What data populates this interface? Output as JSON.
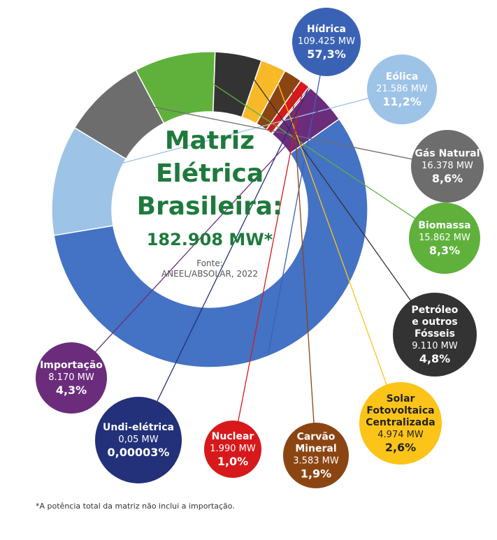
{
  "chart_data": {
    "type": "pie",
    "center": {
      "title_lines": [
        "Matriz",
        "Elétrica",
        "Brasileira:"
      ],
      "total": "182.908 MW*",
      "source_lines": [
        "Fonte:",
        "ANEEL/ABSOLAR, 2022"
      ]
    },
    "categories": [
      "Hídrica",
      "Eólica",
      "Gás Natural",
      "Biomassa",
      "Petróleo e outros Fósseis",
      "Solar Fotovoltaica Centralizada",
      "Carvão Mineral",
      "Nuclear",
      "Undi-elétrica",
      "Importação"
    ],
    "values_mw": [
      109425,
      21586,
      16378,
      15862,
      9110,
      4974,
      3583,
      1990,
      0.05,
      8170
    ],
    "values_pct": [
      57.3,
      11.2,
      8.6,
      8.3,
      4.8,
      2.6,
      1.9,
      1.0,
      3e-05,
      4.3
    ],
    "slices": [
      {
        "name_lines": [
          "Hídrica"
        ],
        "mw": "109.425 MW",
        "pct": "57,3%",
        "color": "#4472c4",
        "bubble_color": "#3a62b4",
        "text_color": "#ffffff"
      },
      {
        "name_lines": [
          "Eólica"
        ],
        "mw": "21.586 MW",
        "pct": "11,2%",
        "color": "#9dc3e6",
        "bubble_color": "#9dc3e6",
        "text_color": "#ffffff"
      },
      {
        "name_lines": [
          "Gás Natural"
        ],
        "mw": "16.378 MW",
        "pct": "8,6%",
        "color": "#6d6d6d",
        "bubble_color": "#6d6d6d",
        "text_color": "#ffffff"
      },
      {
        "name_lines": [
          "Biomassa"
        ],
        "mw": "15.862 MW",
        "pct": "8,3%",
        "color": "#5fb13c",
        "bubble_color": "#5fb13c",
        "text_color": "#ffffff"
      },
      {
        "name_lines": [
          "Petróleo",
          "e outros",
          "Fósseis"
        ],
        "mw": "9.110 MW",
        "pct": "4,8%",
        "color": "#333333",
        "bubble_color": "#333333",
        "text_color": "#ffffff"
      },
      {
        "name_lines": [
          "Solar",
          "Fotovoltaica",
          "Centralizada"
        ],
        "mw": "4.974 MW",
        "pct": "2,6%",
        "color": "#f7b928",
        "bubble_color": "#fcc419",
        "text_color": "#222222"
      },
      {
        "name_lines": [
          "Carvão",
          "Mineral"
        ],
        "mw": "3.583 MW",
        "pct": "1,9%",
        "color": "#8b4513",
        "bubble_color": "#8b4513",
        "text_color": "#ffffff"
      },
      {
        "name_lines": [
          "Nuclear"
        ],
        "mw": "1.990 MW",
        "pct": "1,0%",
        "color": "#d7191c",
        "bubble_color": "#d7191c",
        "text_color": "#ffffff"
      },
      {
        "name_lines": [
          "Undi-elétrica"
        ],
        "mw": "0,05 MW",
        "pct": "0,00003%",
        "color": "#23307a",
        "bubble_color": "#23307a",
        "text_color": "#ffffff"
      },
      {
        "name_lines": [
          "Importação"
        ],
        "mw": "8.170 MW",
        "pct": "4,3%",
        "color": "#6b2c7c",
        "bubble_color": "#6b2c7c",
        "text_color": "#ffffff"
      }
    ],
    "footnote": "*A potência total da matriz não inclui a importação."
  }
}
